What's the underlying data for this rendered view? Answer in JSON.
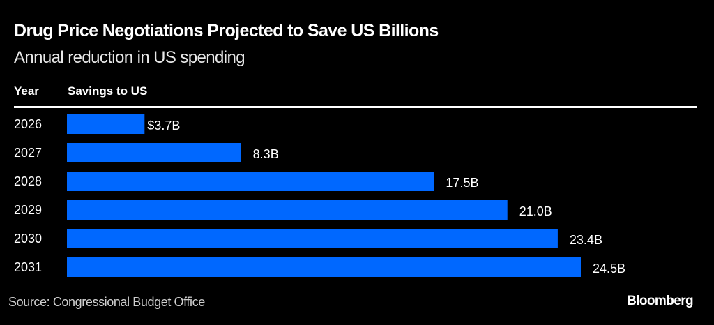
{
  "header": {
    "title": "Drug Price Negotiations Projected to Save US Billions",
    "subtitle": "Annual reduction in US spending"
  },
  "table": {
    "col_year": "Year",
    "col_savings": "Savings to US"
  },
  "footer": {
    "source": "Source: Congressional Budget Office",
    "brand": "Bloomberg"
  },
  "colors": {
    "bar": "#0068ff",
    "background": "#000000",
    "text": "#ffffff"
  },
  "chart_data": {
    "type": "bar",
    "orientation": "horizontal",
    "title": "Drug Price Negotiations Projected to Save US Billions",
    "subtitle": "Annual reduction in US spending",
    "xlabel": "Savings to US",
    "ylabel": "Year",
    "unit": "billions USD",
    "categories": [
      "2026",
      "2027",
      "2028",
      "2029",
      "2030",
      "2031"
    ],
    "values": [
      3.7,
      8.3,
      17.5,
      21.0,
      23.4,
      24.5
    ],
    "labels": [
      "$3.7B",
      "8.3B",
      "17.5B",
      "21.0B",
      "23.4B",
      "24.5B"
    ],
    "xlim": [
      0,
      24.5
    ],
    "grid": false,
    "legend": "none"
  }
}
